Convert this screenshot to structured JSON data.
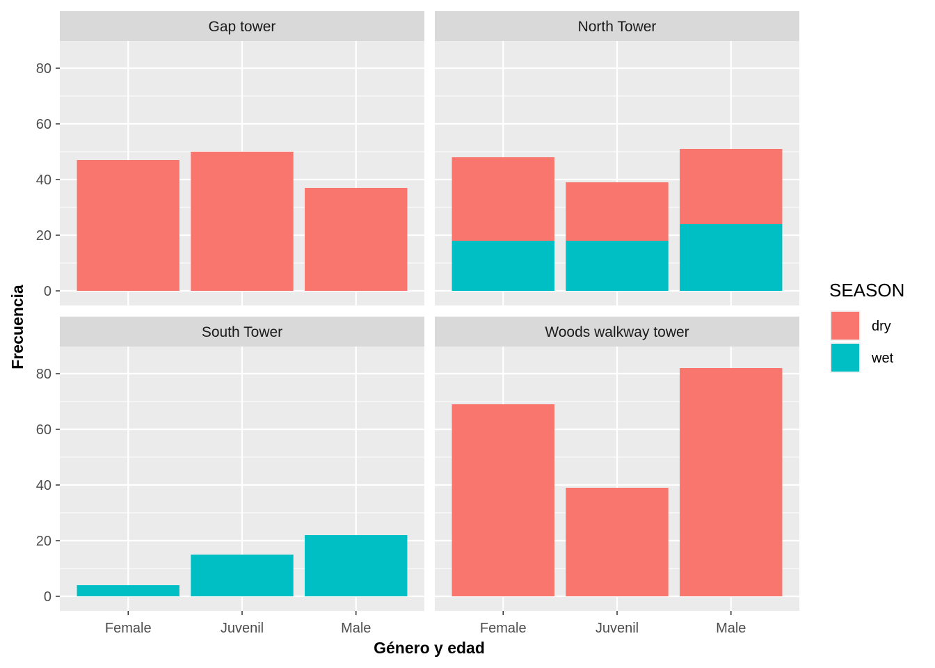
{
  "chart_data": {
    "type": "bar",
    "stacked": true,
    "xlabel": "Género y edad",
    "ylabel": "Frecuencia",
    "categories": [
      "Female",
      "Juvenil",
      "Male"
    ],
    "ylim": [
      0,
      90
    ],
    "yticks": [
      0,
      20,
      40,
      60,
      80
    ],
    "grid": true,
    "legend": {
      "title": "SEASON",
      "position": "right",
      "entries": [
        {
          "name": "dry",
          "color": "#F8766D"
        },
        {
          "name": "wet",
          "color": "#00BFC4"
        }
      ]
    },
    "panels": [
      {
        "title": "Gap tower",
        "series": [
          {
            "name": "dry",
            "values": [
              47,
              50,
              37
            ]
          },
          {
            "name": "wet",
            "values": [
              0,
              0,
              0
            ]
          }
        ]
      },
      {
        "title": "North Tower",
        "series": [
          {
            "name": "dry",
            "values": [
              30,
              21,
              27
            ]
          },
          {
            "name": "wet",
            "values": [
              18,
              18,
              24
            ]
          }
        ]
      },
      {
        "title": "South Tower",
        "series": [
          {
            "name": "dry",
            "values": [
              0,
              0,
              0
            ]
          },
          {
            "name": "wet",
            "values": [
              4,
              15,
              22
            ]
          }
        ]
      },
      {
        "title": "Woods walkway tower",
        "series": [
          {
            "name": "dry",
            "values": [
              69,
              39,
              82
            ]
          },
          {
            "name": "wet",
            "values": [
              0,
              0,
              0
            ]
          }
        ]
      }
    ]
  }
}
